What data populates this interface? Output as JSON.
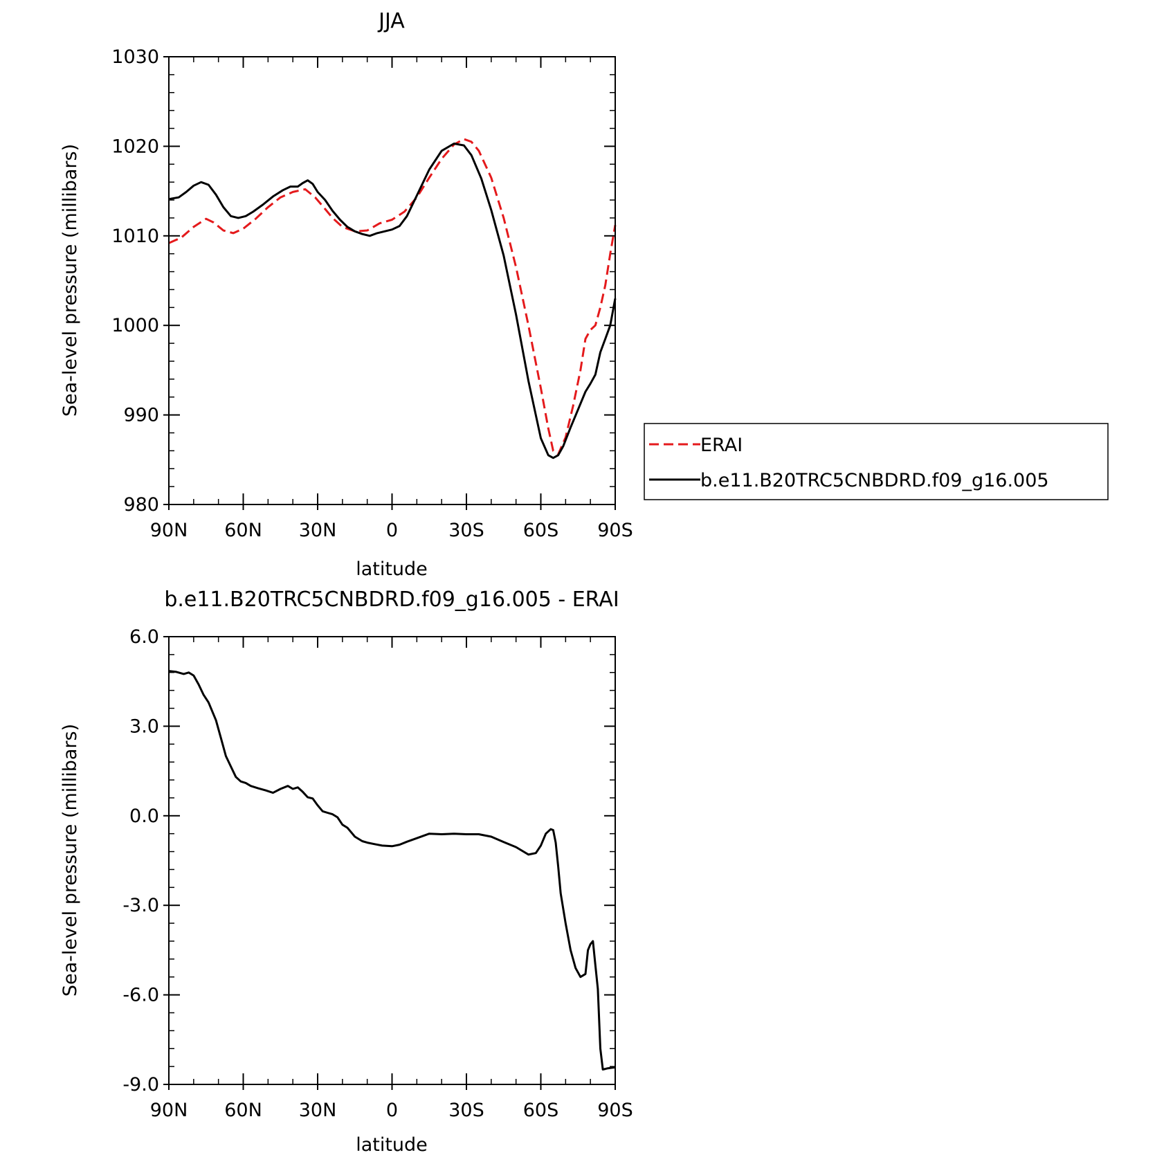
{
  "chart_data": [
    {
      "type": "line",
      "title": "JJA",
      "xlabel": "latitude",
      "ylabel": "Sea-level pressure (millibars)",
      "xlim": [
        90,
        -90
      ],
      "ylim": [
        980,
        1030
      ],
      "xticks": [
        90,
        60,
        30,
        0,
        -30,
        -60,
        -90
      ],
      "xtick_labels": [
        "90N",
        "60N",
        "30N",
        "0",
        "30S",
        "60S",
        "90S"
      ],
      "yticks": [
        980,
        990,
        1000,
        1010,
        1020,
        1030
      ],
      "ytick_labels": [
        "980",
        "990",
        "1000",
        "1010",
        "1020",
        "1030"
      ],
      "legend_position": "outside-right",
      "series": [
        {
          "name": "ERAI",
          "color": "#e41a1c",
          "dash": "dashed",
          "x": [
            90,
            85,
            80,
            75,
            72,
            68,
            64,
            60,
            55,
            50,
            45,
            40,
            35,
            31,
            27,
            24,
            20,
            15,
            10,
            5,
            0,
            -5,
            -10,
            -15,
            -20,
            -25,
            -29,
            -32,
            -35,
            -40,
            -45,
            -50,
            -55,
            -60,
            -63,
            -65,
            -67,
            -70,
            -73,
            -76,
            -78,
            -80,
            -82,
            -84,
            -86,
            -88,
            -90
          ],
          "y": [
            1009.2,
            1009.8,
            1011.0,
            1011.9,
            1011.5,
            1010.6,
            1010.3,
            1010.8,
            1011.9,
            1013.2,
            1014.3,
            1014.9,
            1015.2,
            1014.3,
            1013.0,
            1012.0,
            1011.0,
            1010.5,
            1010.6,
            1011.4,
            1011.8,
            1012.7,
            1014.3,
            1016.5,
            1018.6,
            1020.2,
            1020.8,
            1020.5,
            1019.5,
            1016.5,
            1012.0,
            1006.5,
            1000.0,
            993.0,
            988.5,
            986.0,
            985.6,
            987.5,
            991.0,
            995.0,
            998.5,
            999.5,
            1000.0,
            1002.0,
            1004.5,
            1008.0,
            1011.2
          ]
        },
        {
          "name": "b.e11.B20TRC5CNBDRD.f09_g16.005",
          "color": "#000000",
          "dash": "solid",
          "x": [
            90,
            86,
            83,
            80,
            77,
            74,
            71,
            68,
            65,
            62,
            59,
            56,
            52,
            48,
            44,
            41,
            38,
            36,
            34,
            32,
            30,
            27,
            24,
            21,
            18,
            15,
            12,
            9,
            6,
            3,
            0,
            -3,
            -6,
            -10,
            -15,
            -20,
            -25,
            -29,
            -32,
            -36,
            -40,
            -45,
            -50,
            -55,
            -60,
            -63,
            -65,
            -67,
            -69,
            -72,
            -75,
            -78,
            -80,
            -82,
            -84,
            -86,
            -88,
            -90
          ],
          "y": [
            1014.1,
            1014.3,
            1014.9,
            1015.6,
            1016.0,
            1015.7,
            1014.6,
            1013.2,
            1012.2,
            1012.0,
            1012.2,
            1012.7,
            1013.5,
            1014.4,
            1015.1,
            1015.5,
            1015.5,
            1015.9,
            1016.2,
            1015.8,
            1014.9,
            1014.0,
            1012.8,
            1011.8,
            1011.0,
            1010.5,
            1010.2,
            1010.0,
            1010.3,
            1010.5,
            1010.7,
            1011.1,
            1012.2,
            1014.5,
            1017.4,
            1019.5,
            1020.3,
            1020.1,
            1019.0,
            1016.4,
            1012.9,
            1007.8,
            1001.2,
            993.8,
            987.4,
            985.5,
            985.2,
            985.5,
            986.5,
            988.6,
            990.6,
            992.6,
            993.5,
            994.5,
            997.0,
            998.5,
            1000.0,
            1003.0
          ]
        }
      ]
    },
    {
      "type": "line",
      "title": "b.e11.B20TRC5CNBDRD.f09_g16.005 - ERAI",
      "xlabel": "latitude",
      "ylabel": "Sea-level pressure (millibars)",
      "xlim": [
        90,
        -90
      ],
      "ylim": [
        -9.0,
        6.0
      ],
      "xticks": [
        90,
        60,
        30,
        0,
        -30,
        -60,
        -90
      ],
      "xtick_labels": [
        "90N",
        "60N",
        "30N",
        "0",
        "30S",
        "60S",
        "90S"
      ],
      "yticks": [
        -9,
        -6,
        -3,
        0,
        3,
        6
      ],
      "ytick_labels": [
        "-9.0",
        "-6.0",
        "-3.0",
        "0.0",
        "3.0",
        "6.0"
      ],
      "series": [
        {
          "color": "#000000",
          "dash": "solid",
          "x": [
            90,
            87,
            84,
            82,
            80,
            78,
            76,
            74,
            71,
            69,
            67,
            65,
            63,
            61,
            59,
            57,
            54,
            51,
            48,
            45,
            42,
            40,
            38,
            36,
            34,
            32,
            30,
            28,
            26,
            24,
            22,
            20,
            18,
            15,
            12,
            10,
            7,
            4,
            0,
            -3,
            -6,
            -10,
            -15,
            -20,
            -25,
            -30,
            -35,
            -40,
            -45,
            -50,
            -55,
            -58,
            -60,
            -62,
            -64,
            -65,
            -66,
            -67,
            -68,
            -70,
            -72,
            -74,
            -76,
            -78,
            -79,
            -80,
            -81,
            -82,
            -83,
            -84,
            -85,
            -86,
            -87,
            -88,
            -89,
            -90
          ],
          "y": [
            4.85,
            4.82,
            4.75,
            4.8,
            4.7,
            4.4,
            4.05,
            3.8,
            3.2,
            2.6,
            2.0,
            1.65,
            1.3,
            1.15,
            1.1,
            1.0,
            0.92,
            0.85,
            0.77,
            0.9,
            1.0,
            0.9,
            0.95,
            0.8,
            0.62,
            0.58,
            0.35,
            0.15,
            0.1,
            0.05,
            -0.05,
            -0.3,
            -0.4,
            -0.7,
            -0.85,
            -0.9,
            -0.95,
            -1.0,
            -1.02,
            -0.97,
            -0.87,
            -0.75,
            -0.6,
            -0.62,
            -0.6,
            -0.62,
            -0.62,
            -0.7,
            -0.88,
            -1.05,
            -1.3,
            -1.25,
            -1.0,
            -0.6,
            -0.45,
            -0.48,
            -0.9,
            -1.7,
            -2.6,
            -3.6,
            -4.5,
            -5.1,
            -5.4,
            -5.3,
            -4.5,
            -4.3,
            -4.2,
            -5.0,
            -5.8,
            -7.8,
            -8.5,
            -8.48,
            -8.46,
            -8.45,
            -8.44,
            -8.43
          ]
        }
      ]
    }
  ]
}
